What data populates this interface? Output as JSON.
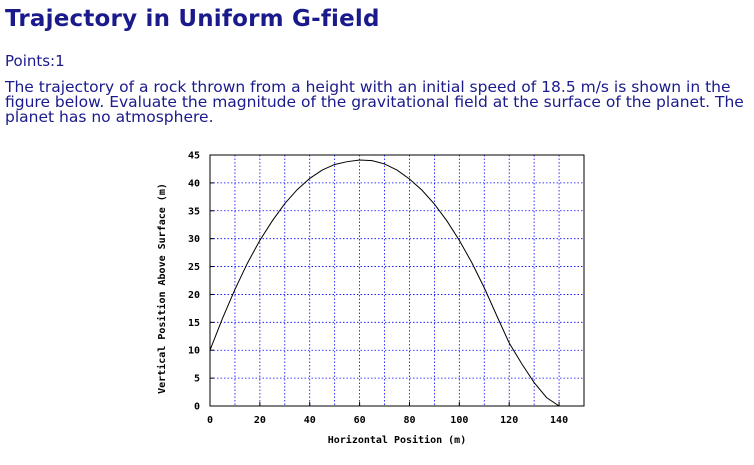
{
  "page": {
    "title": "Trajectory in Uniform G-field",
    "points_label": "Points:",
    "points_value": "1",
    "question": "The trajectory of a rock thrown from a height with an initial speed of 18.5 m/s is shown in the figure below. Evaluate the magnitude of the gravitational field at the surface of the planet. The planet has no atmosphere."
  },
  "colors": {
    "text": "#1a1a8c",
    "grid": "#0000ff",
    "curve": "#000000"
  },
  "chart_data": {
    "type": "line",
    "title": "",
    "xlabel": "Horizontal Position (m)",
    "ylabel": "Vertical Position Above Surface (m)",
    "xlim": [
      0,
      150
    ],
    "ylim": [
      0,
      45
    ],
    "x_ticks": [
      0,
      20,
      40,
      60,
      80,
      100,
      120,
      140
    ],
    "y_ticks": [
      0,
      5,
      10,
      15,
      20,
      25,
      30,
      35,
      40,
      45
    ],
    "grid": true,
    "series": [
      {
        "x": [
          0,
          5,
          10,
          15,
          20,
          25,
          30,
          35,
          40,
          45,
          50,
          55,
          60,
          65,
          70,
          75,
          80,
          85,
          90,
          95,
          100,
          105,
          110,
          115,
          120,
          125,
          130,
          135,
          140
        ],
        "y": [
          10,
          15.7,
          20.9,
          25.6,
          29.7,
          33.2,
          36.3,
          38.8,
          40.8,
          42.3,
          43.3,
          43.8,
          44.1,
          44.0,
          43.4,
          42.3,
          40.7,
          38.7,
          36.2,
          33.2,
          29.7,
          25.7,
          21.2,
          16.2,
          11.3,
          7.6,
          4.2,
          1.5,
          0
        ]
      }
    ]
  }
}
